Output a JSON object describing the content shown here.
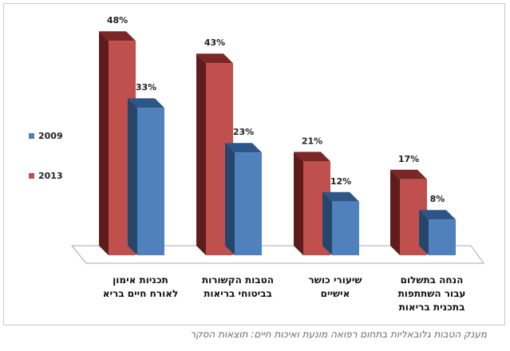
{
  "caption": "מענק הטבות גלובאליות בתחום רפואה מונעת ואיכות חיים: תוצאות הסקר",
  "colors": {
    "s2013_front": "#c0504d",
    "s2013_side": "#5e1c1b",
    "s2013_top": "#7a2726",
    "s2009_front": "#4f81bd",
    "s2009_side": "#27466b",
    "s2009_top": "#2e5588"
  },
  "chart_data": {
    "type": "bar",
    "categories": [
      [
        "תכניות אימון",
        "לאורח חיים בריא"
      ],
      [
        "הטבות הקשורות",
        "בביטוחי בריאות"
      ],
      [
        "שיעורי כושר",
        "אישיים"
      ],
      [
        "הנחה בתשלום",
        "עבור השתתפות",
        "בתכנית בריאות"
      ]
    ],
    "series": [
      {
        "name": "2013",
        "values": [
          48,
          43,
          21,
          17
        ],
        "labels": [
          "48%",
          "43%",
          "21%",
          "17%"
        ]
      },
      {
        "name": "2009",
        "values": [
          33,
          23,
          12,
          8
        ],
        "labels": [
          "33%",
          "23%",
          "12%",
          "8%"
        ]
      }
    ],
    "legend_position": "left",
    "ylim": [
      0,
      50
    ],
    "grid": false
  }
}
